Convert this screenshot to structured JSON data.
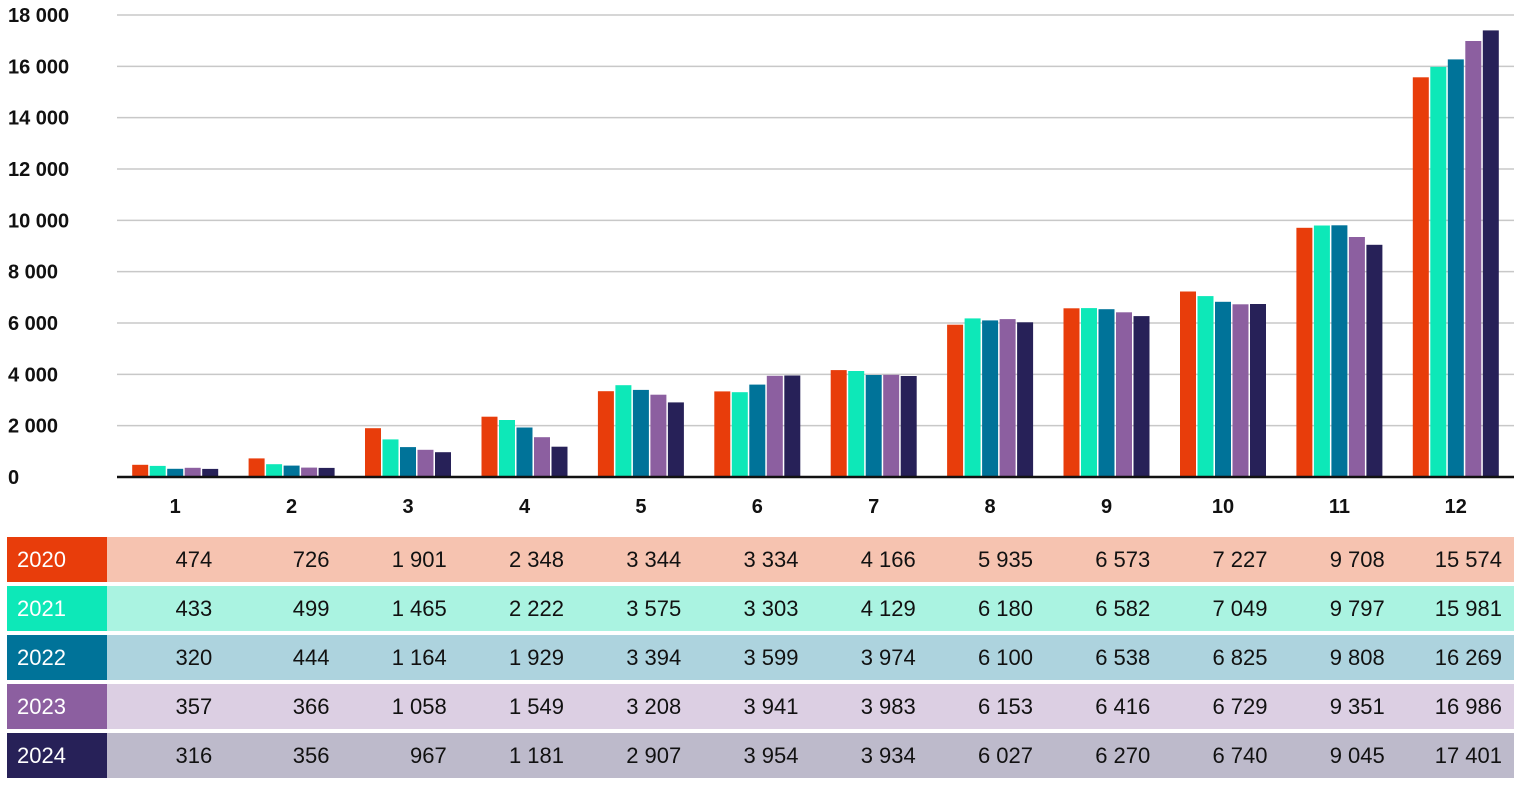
{
  "chart_data": {
    "type": "bar",
    "categories": [
      "1",
      "2",
      "3",
      "4",
      "5",
      "6",
      "7",
      "8",
      "9",
      "10",
      "11",
      "12"
    ],
    "series": [
      {
        "name": "2020",
        "color": "#e83d0b",
        "row_bg": "#f6c3b0",
        "values": [
          474,
          726,
          1901,
          2348,
          3344,
          3334,
          4166,
          5935,
          6573,
          7227,
          9708,
          15574
        ]
      },
      {
        "name": "2021",
        "color": "#0de8b8",
        "row_bg": "#aaf3e1",
        "values": [
          433,
          499,
          1465,
          2222,
          3575,
          3303,
          4129,
          6180,
          6582,
          7049,
          9797,
          15981
        ]
      },
      {
        "name": "2022",
        "color": "#007399",
        "row_bg": "#add3de",
        "values": [
          320,
          444,
          1164,
          1929,
          3394,
          3599,
          3974,
          6100,
          6538,
          6825,
          9808,
          16269
        ]
      },
      {
        "name": "2023",
        "color": "#8c5fa0",
        "row_bg": "#dccfe3",
        "values": [
          357,
          366,
          1058,
          1549,
          3208,
          3941,
          3983,
          6153,
          6416,
          6729,
          9351,
          16986
        ]
      },
      {
        "name": "2024",
        "color": "#272158",
        "row_bg": "#bdbacb",
        "values": [
          316,
          356,
          967,
          1181,
          2907,
          3954,
          3934,
          6027,
          6270,
          6740,
          9045,
          17401
        ]
      }
    ],
    "table_rows": [
      {
        "year": "2020",
        "cells": [
          "474",
          "726",
          "1 901",
          "2 348",
          "3 344",
          "3 334",
          "4 166",
          "5 935",
          "6 573",
          "7 227",
          "9 708",
          "15 574"
        ]
      },
      {
        "year": "2021",
        "cells": [
          "433",
          "499",
          "1 465",
          "2 222",
          "3 575",
          "3 303",
          "4 129",
          "6 180",
          "6 582",
          "7 049",
          "9 797",
          "15 981"
        ]
      },
      {
        "year": "2022",
        "cells": [
          "320",
          "444",
          "1 164",
          "1 929",
          "3 394",
          "3 599",
          "3 974",
          "6 100",
          "6 538",
          "6 825",
          "9 808",
          "16 269"
        ]
      },
      {
        "year": "2023",
        "cells": [
          "357",
          "366",
          "1 058",
          "1 549",
          "3 208",
          "3 941",
          "3 983",
          "6 153",
          "6 416",
          "6 729",
          "9 351",
          "16 986"
        ]
      },
      {
        "year": "2024",
        "cells": [
          "316",
          "356",
          "967",
          "1 181",
          "2 907",
          "3 954",
          "3 934",
          "6 027",
          "6 270",
          "6 740",
          "9 045",
          "17 401"
        ]
      }
    ],
    "y_ticks": [
      "0",
      "2 000",
      "4 000",
      "6 000",
      "8 000",
      "10 000",
      "12 000",
      "14 000",
      "16 000",
      "18 000"
    ],
    "ylim": [
      0,
      18000
    ],
    "grid": true,
    "legend": "data table below chart",
    "title": "",
    "xlabel": "",
    "ylabel": ""
  }
}
